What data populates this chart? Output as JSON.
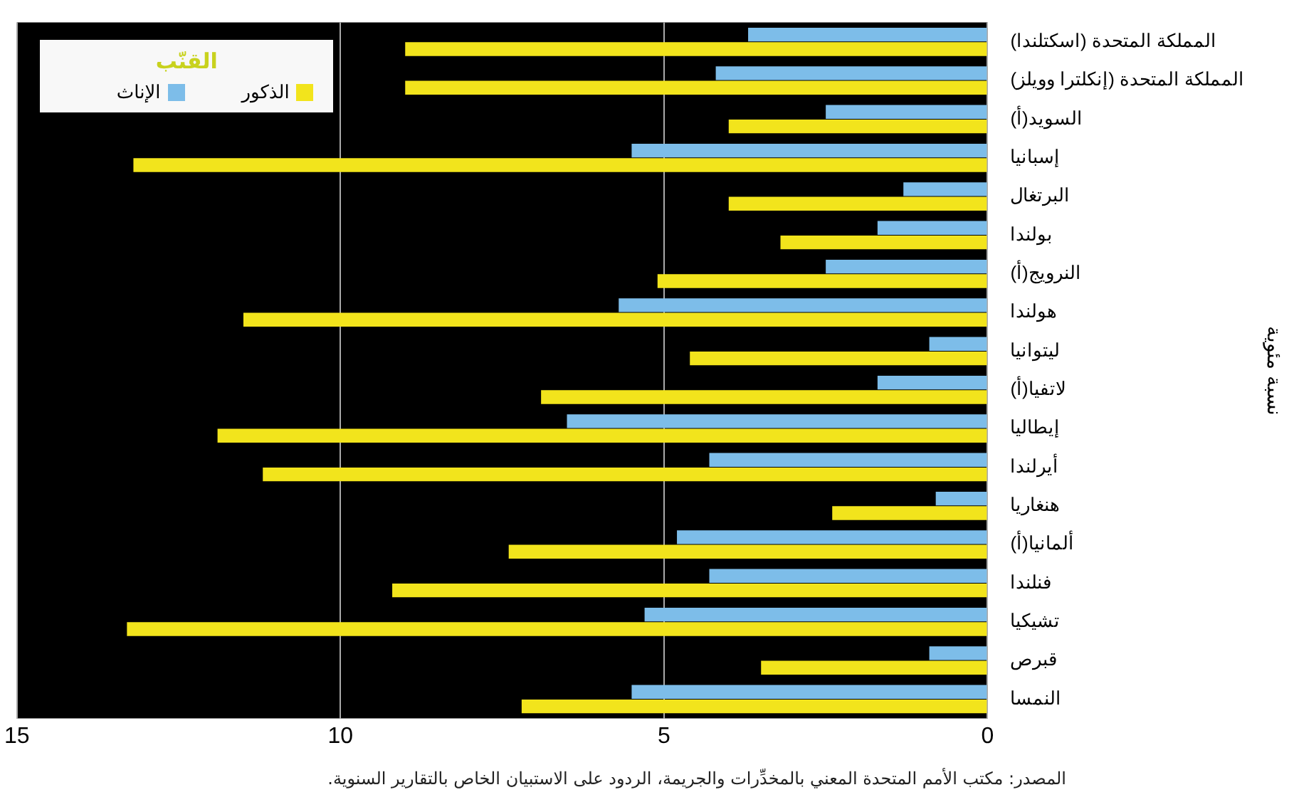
{
  "chart_data": {
    "type": "bar",
    "orientation": "horizontal",
    "legend_title": "القنّب",
    "ylabel": "نسبة مئوية",
    "categories": [
      "المملكة المتحدة (اسكتلندا)",
      "المملكة المتحدة (إنكلترا وويلز)",
      "السويد(أ)",
      "إسبانيا",
      "البرتغال",
      "بولندا",
      "النرويج(أ)",
      "هولندا",
      "ليتوانيا",
      "لاتفيا(أ)",
      "إيطاليا",
      "أيرلندا",
      "هنغاريا",
      "ألمانيا(أ)",
      "فنلندا",
      "تشيكيا",
      "قبرص",
      "النمسا"
    ],
    "series": [
      {
        "name": "الإناث",
        "color": "#7dbde9",
        "values": [
          3.7,
          4.2,
          2.5,
          5.5,
          1.3,
          1.7,
          2.5,
          5.7,
          0.9,
          1.7,
          6.5,
          4.3,
          0.8,
          4.8,
          4.3,
          5.3,
          0.9,
          5.5
        ]
      },
      {
        "name": "الذكور",
        "color": "#f2e41c",
        "values": [
          9.0,
          9.0,
          4.0,
          13.2,
          4.0,
          3.2,
          5.1,
          11.5,
          4.6,
          6.9,
          11.9,
          11.2,
          2.4,
          7.4,
          9.2,
          13.3,
          3.5,
          7.2
        ]
      }
    ],
    "xlim": [
      15,
      0
    ],
    "xticks": [
      15,
      10,
      5,
      0
    ],
    "grid": "x",
    "legend": "top left",
    "annotations": [
      "المصدر: مكتب الأمم المتحدة المعني بالمخدِّرات والجريمة، الردود على الاستبيان الخاص بالتقارير السنوية."
    ]
  }
}
